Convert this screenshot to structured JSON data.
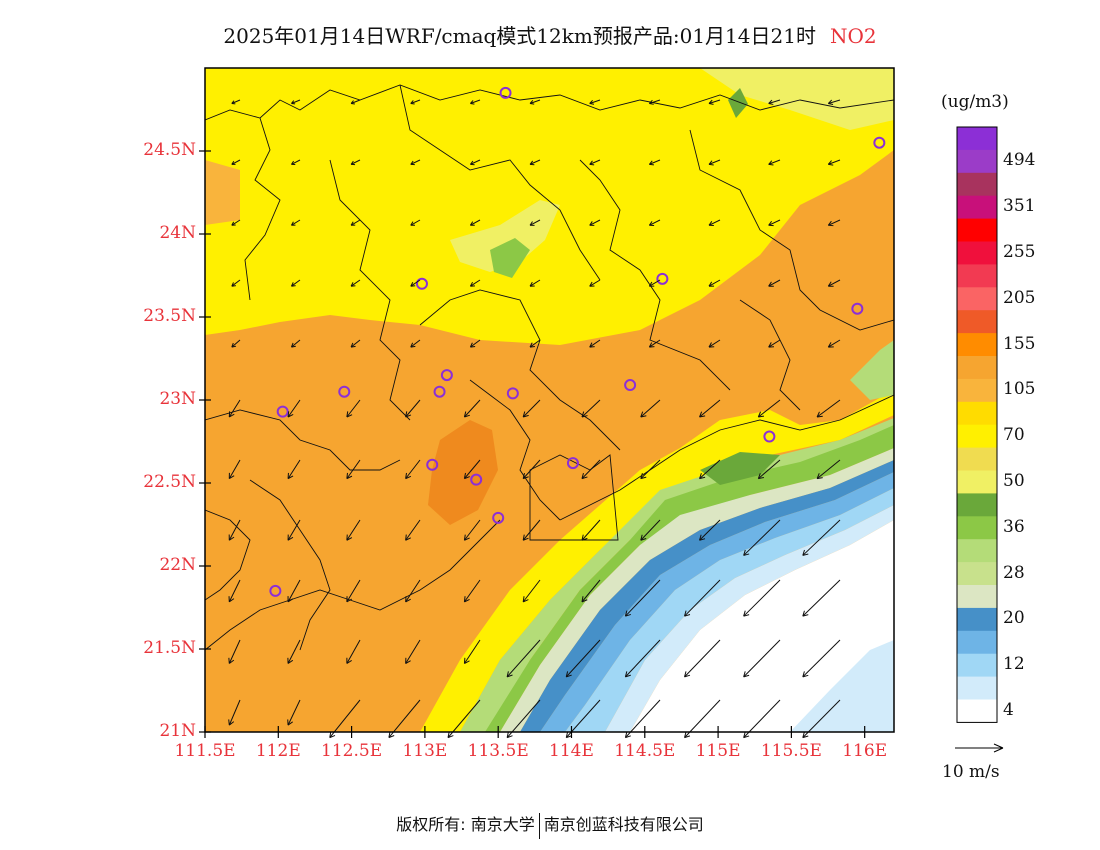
{
  "title": {
    "main": "2025年01月14日WRF/cmaq模式12km预报产品:01月14日21时",
    "species": "NO2"
  },
  "axes": {
    "y_ticks": [
      {
        "value": 24.5,
        "label": "24.5N"
      },
      {
        "value": 24,
        "label": "24N"
      },
      {
        "value": 23.5,
        "label": "23.5N"
      },
      {
        "value": 23,
        "label": "23N"
      },
      {
        "value": 22.5,
        "label": "22.5N"
      },
      {
        "value": 22,
        "label": "22N"
      },
      {
        "value": 21.5,
        "label": "21.5N"
      },
      {
        "value": 21,
        "label": "21N"
      }
    ],
    "x_ticks": [
      {
        "value": 111.5,
        "label": "111.5E"
      },
      {
        "value": 112,
        "label": "112E"
      },
      {
        "value": 112.5,
        "label": "112.5E"
      },
      {
        "value": 113,
        "label": "113E"
      },
      {
        "value": 113.5,
        "label": "113.5E"
      },
      {
        "value": 114,
        "label": "114E"
      },
      {
        "value": 114.5,
        "label": "114.5E"
      },
      {
        "value": 115,
        "label": "115E"
      },
      {
        "value": 115.5,
        "label": "115.5E"
      },
      {
        "value": 116,
        "label": "116E"
      }
    ],
    "lon_range": [
      111.5,
      116.2
    ],
    "lat_range": [
      21,
      25
    ]
  },
  "legend": {
    "unit": "(ug/m3)",
    "colors": [
      "#8c2fd6",
      "#9b3cc8",
      "#a8335e",
      "#c8107a",
      "#ff0000",
      "#f0103c",
      "#f23a52",
      "#fa6464",
      "#ef5a28",
      "#ff8c00",
      "#f6a530",
      "#f9b43c",
      "#ffdc00",
      "#fff000",
      "#f0dc50",
      "#f0f064",
      "#6aa83a",
      "#8cc846",
      "#b4dc78",
      "#c8e18c",
      "#dce6c3",
      "#4690c8",
      "#6eb4e6",
      "#a0d7f5",
      "#d2ebfa",
      "#ffffff"
    ],
    "labels": [
      {
        "text": "494",
        "index": 1
      },
      {
        "text": "351",
        "index": 3
      },
      {
        "text": "255",
        "index": 5
      },
      {
        "text": "205",
        "index": 7
      },
      {
        "text": "155",
        "index": 9
      },
      {
        "text": "105",
        "index": 11
      },
      {
        "text": "70",
        "index": 13
      },
      {
        "text": "50",
        "index": 15
      },
      {
        "text": "36",
        "index": 17
      },
      {
        "text": "28",
        "index": 19
      },
      {
        "text": "20",
        "index": 21
      },
      {
        "text": "12",
        "index": 23
      },
      {
        "text": "4",
        "index": 25
      }
    ]
  },
  "wind_scale": {
    "label": "10 m/s"
  },
  "credits": {
    "left": "版权所有: 南京大学",
    "right": "南京创蓝科技有限公司"
  },
  "stations": [
    {
      "lon": 113.55,
      "lat": 24.85
    },
    {
      "lon": 116.1,
      "lat": 24.55
    },
    {
      "lon": 112.98,
      "lat": 23.7
    },
    {
      "lon": 114.62,
      "lat": 23.73
    },
    {
      "lon": 115.95,
      "lat": 23.55
    },
    {
      "lon": 113.15,
      "lat": 23.15
    },
    {
      "lon": 112.45,
      "lat": 23.05
    },
    {
      "lon": 113.1,
      "lat": 23.05
    },
    {
      "lon": 113.6,
      "lat": 23.04
    },
    {
      "lon": 114.4,
      "lat": 23.09
    },
    {
      "lon": 112.03,
      "lat": 22.93
    },
    {
      "lon": 115.35,
      "lat": 22.78
    },
    {
      "lon": 113.05,
      "lat": 22.61
    },
    {
      "lon": 114.01,
      "lat": 22.62
    },
    {
      "lon": 113.35,
      "lat": 22.52
    },
    {
      "lon": 113.5,
      "lat": 22.29
    },
    {
      "lon": 111.98,
      "lat": 21.85
    }
  ]
}
